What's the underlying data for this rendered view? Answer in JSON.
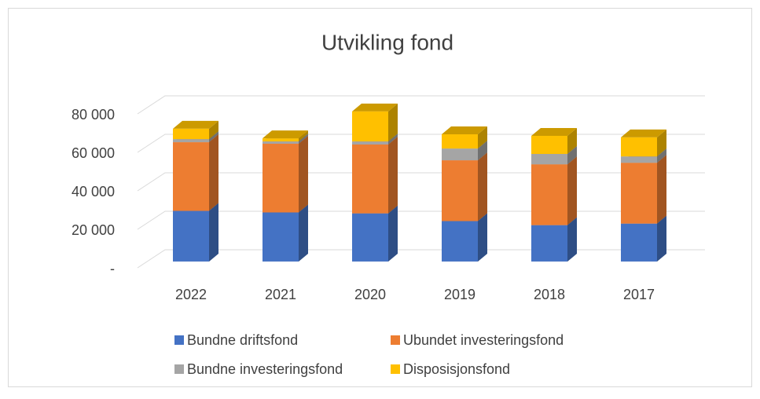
{
  "chart_data": {
    "type": "bar3d_stacked",
    "title": "Utvikling fond",
    "categories": [
      "2022",
      "2021",
      "2020",
      "2019",
      "2018",
      "2017"
    ],
    "series": [
      {
        "name": "Bundne driftsfond",
        "color": "#4472c4",
        "values": [
          26300,
          25500,
          25000,
          21000,
          18900,
          19700
        ]
      },
      {
        "name": "Ubundet investeringsfond",
        "color": "#ed7d31",
        "values": [
          35700,
          35700,
          35800,
          31600,
          31600,
          31600
        ]
      },
      {
        "name": "Bundne investeringsfond",
        "color": "#a5a5a5",
        "values": [
          1600,
          1200,
          1600,
          6100,
          5400,
          3300
        ]
      },
      {
        "name": "Disposisjonsfond",
        "color": "#ffc000",
        "values": [
          5400,
          1600,
          15600,
          7400,
          9400,
          9900
        ]
      }
    ],
    "ylim": [
      0,
      80000
    ],
    "yticks": [
      {
        "value": 0,
        "label": "-"
      },
      {
        "value": 20000,
        "label": "20 000"
      },
      {
        "value": 40000,
        "label": "40 000"
      },
      {
        "value": 60000,
        "label": "60 000"
      },
      {
        "value": 80000,
        "label": "80 000"
      }
    ],
    "grid": true,
    "legend": "bottom"
  }
}
